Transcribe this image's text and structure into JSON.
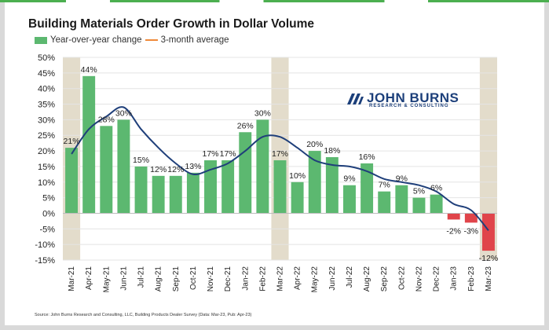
{
  "title": "Building Materials Order Growth in Dollar Volume",
  "legend": {
    "bar_label": "Year-over-year change",
    "line_label": "3-month average"
  },
  "logo": {
    "main": "JOHN BURNS",
    "sub": "RESEARCH & CONSULTING"
  },
  "source": "Source: John Burns Research and Consulting, LLC, Building Products Dealer Survey (Data: Mar-23, Pub: Apr-23)",
  "colors": {
    "bar_positive": "#5cb870",
    "bar_negative": "#e0444a",
    "line": "#1f3f7a",
    "shade": "#e3dccb",
    "grid": "#e4e4e4"
  },
  "chart_data": {
    "type": "bar",
    "title": "Building Materials Order Growth in Dollar Volume",
    "categories": [
      "Mar-21",
      "Apr-21",
      "May-21",
      "Jun-21",
      "Jul-21",
      "Aug-21",
      "Sep-21",
      "Oct-21",
      "Nov-21",
      "Dec-21",
      "Jan-22",
      "Feb-22",
      "Mar-22",
      "Apr-22",
      "May-22",
      "Jun-22",
      "Jul-22",
      "Aug-22",
      "Sep-22",
      "Oct-22",
      "Nov-22",
      "Dec-22",
      "Jan-23",
      "Feb-23",
      "Mar-23"
    ],
    "series": [
      {
        "name": "Year-over-year change",
        "type": "bar",
        "values": [
          21,
          44,
          28,
          30,
          15,
          12,
          12,
          13,
          17,
          17,
          26,
          30,
          17,
          10,
          20,
          18,
          9,
          16,
          7,
          9,
          5,
          6,
          -2,
          -3,
          -12
        ],
        "data_labels": [
          "21%",
          "44%",
          "28%",
          "30%",
          "15%",
          "12%",
          "12%",
          "13%",
          "17%",
          "17%",
          "26%",
          "30%",
          "17%",
          "10%",
          "20%",
          "18%",
          "9%",
          "16%",
          "7%",
          "9%",
          "5%",
          "6%",
          "-2%",
          "-3%",
          "-12%"
        ]
      },
      {
        "name": "3-month average",
        "type": "line",
        "values": [
          19,
          27,
          31,
          34,
          27,
          21,
          16,
          12.5,
          14,
          16,
          20,
          24.5,
          24.5,
          21,
          17,
          15.5,
          15,
          13.5,
          11,
          10,
          9,
          7,
          3,
          1,
          -5.5
        ]
      }
    ],
    "highlighted_categories": [
      "Mar-21",
      "Mar-22",
      "Mar-23"
    ],
    "ylim": [
      -15,
      50
    ],
    "yticks": [
      -15,
      -10,
      -5,
      0,
      5,
      10,
      15,
      20,
      25,
      30,
      35,
      40,
      45,
      50
    ],
    "ytick_labels": [
      "-15%",
      "-10%",
      "-5%",
      "0%",
      "5%",
      "10%",
      "15%",
      "20%",
      "25%",
      "30%",
      "35%",
      "40%",
      "45%",
      "50%"
    ],
    "xlabel": "",
    "ylabel": "",
    "grid": true,
    "legend": "top-left"
  }
}
